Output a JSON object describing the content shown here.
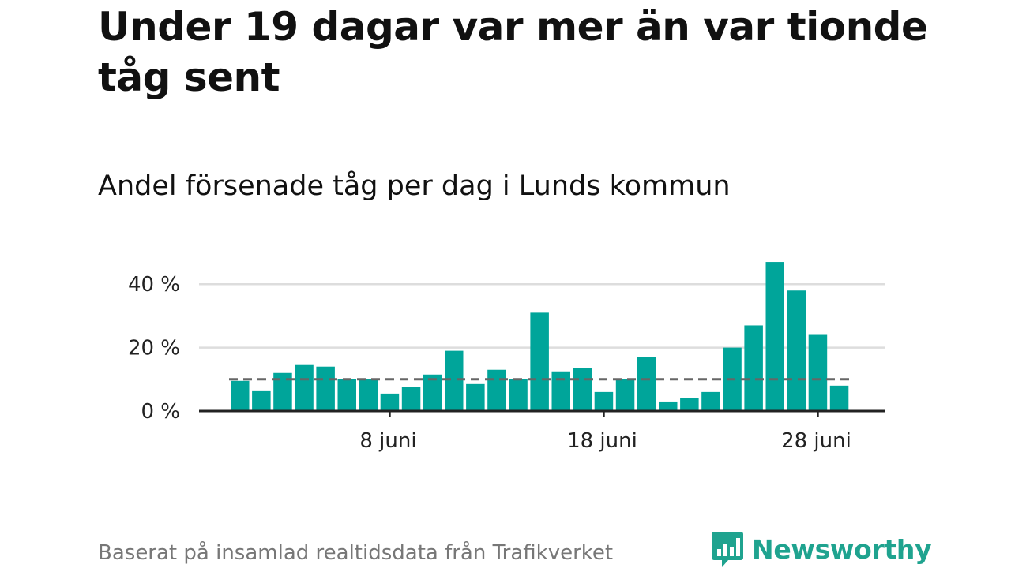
{
  "title": "Under 19 dagar var mer än var tionde tåg sent",
  "subtitle": "Andel försenade tåg per dag i Lunds kommun",
  "source": "Baserat på insamlad realtidsdata från Trafikverket",
  "brand": {
    "name": "Newsworthy",
    "color": "#1fa38f",
    "icon": "newsworthy-bar-chart-icon"
  },
  "colors": {
    "bar": "#00a59a",
    "reference_line": "#666666",
    "grid": "#dddddd",
    "axis": "#222222"
  },
  "chart_data": {
    "type": "bar",
    "x": [
      "1 juni",
      "2 juni",
      "3 juni",
      "4 juni",
      "5 juni",
      "6 juni",
      "7 juni",
      "8 juni",
      "9 juni",
      "10 juni",
      "11 juni",
      "12 juni",
      "13 juni",
      "14 juni",
      "15 juni",
      "16 juni",
      "17 juni",
      "18 juni",
      "19 juni",
      "20 juni",
      "21 juni",
      "22 juni",
      "23 juni",
      "24 juni",
      "25 juni",
      "26 juni",
      "27 juni",
      "28 juni",
      "29 juni"
    ],
    "values": [
      9.5,
      6.5,
      12,
      14.5,
      14,
      10,
      10,
      5.5,
      7.5,
      11.5,
      19,
      8.5,
      13,
      10,
      31,
      12.5,
      13.5,
      6,
      10,
      17,
      3,
      4,
      6,
      20,
      27,
      47,
      38,
      24,
      8
    ],
    "reference_line": 10,
    "yticks": [
      0,
      20,
      40
    ],
    "ytick_labels": [
      "0 %",
      "20 %",
      "40 %"
    ],
    "xticks": [
      "8 juni",
      "18 juni",
      "28 juni"
    ],
    "ylim": [
      0,
      50
    ],
    "xlabel": "",
    "ylabel": "",
    "grid": true
  }
}
